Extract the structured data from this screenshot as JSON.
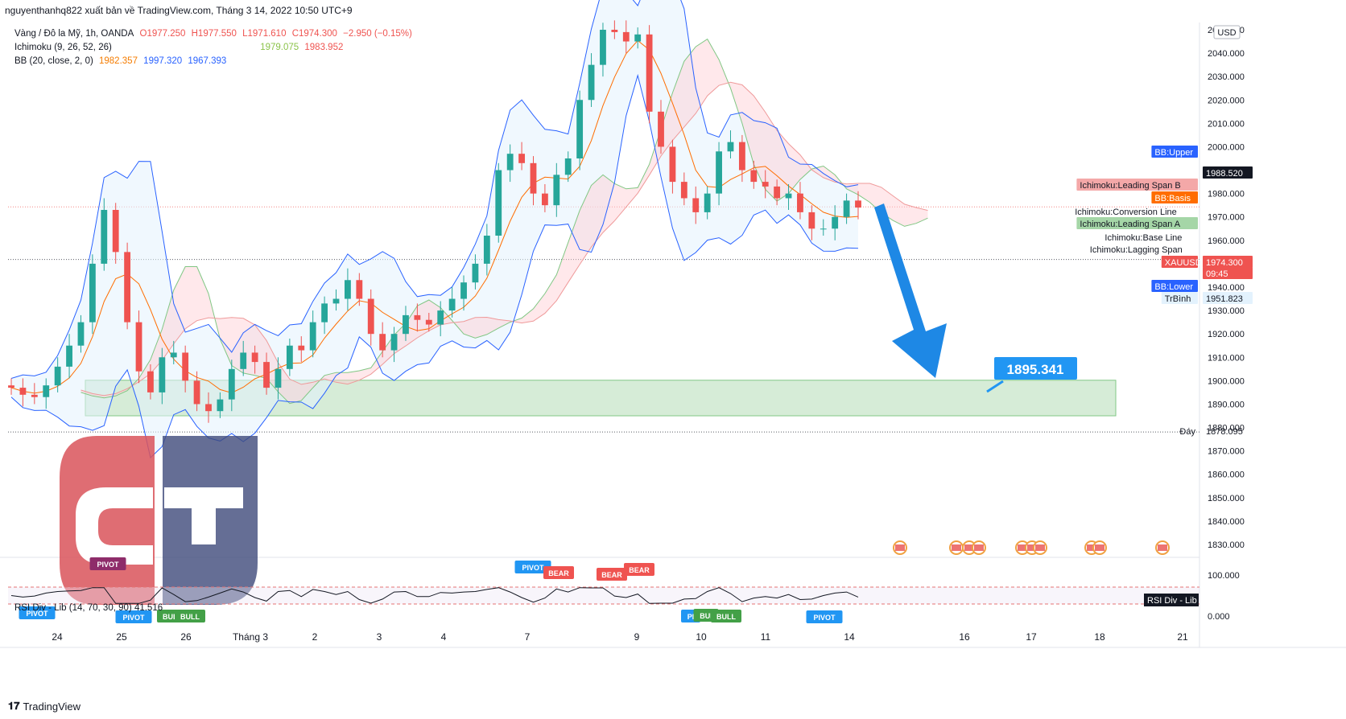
{
  "header": {
    "published_by": "nguyenthanhq822 xuất bản về TradingView.com, Tháng 3 14, 2022 10:50 UTC+9",
    "currency": "USD"
  },
  "legend": {
    "symbol": "Vàng / Đô la Mỹ, 1h, OANDA",
    "open": "O1977.250",
    "high": "H1977.550",
    "low": "L1971.610",
    "close": "C1974.300",
    "change": "−2.950 (−0.15%)",
    "ichimoku": "Ichimoku (9, 26, 52, 26)",
    "ichimoku_a": "1979.075",
    "ichimoku_b": "1983.952",
    "bb": "BB (20, close, 2, 0)",
    "bb_basis": "1982.357",
    "bb_upper": "1997.320",
    "bb_lower": "1967.393"
  },
  "price_axis": {
    "ticks": [
      "2050.000",
      "2040.000",
      "2030.000",
      "2020.000",
      "2010.000",
      "2000.000",
      "1990.000",
      "1980.000",
      "1970.000",
      "1960.000",
      "1950.000",
      "1940.000",
      "1930.000",
      "1920.000",
      "1910.000",
      "1900.000",
      "1890.000",
      "1880.000",
      "1870.000",
      "1860.000",
      "1850.000",
      "1840.000",
      "1830.000"
    ],
    "tick_values": [
      2050,
      2040,
      2030,
      2020,
      2010,
      2000,
      1990,
      1980,
      1970,
      1960,
      1950,
      1940,
      1930,
      1920,
      1910,
      1900,
      1890,
      1880,
      1870,
      1860,
      1850,
      1840,
      1830
    ],
    "labels": [
      {
        "name": "BB:Upper",
        "text": "BB:Upper",
        "value": 1997.32,
        "bg": "#2962ff",
        "fg": "#ffffff"
      },
      {
        "name": "price-1988",
        "text": "1988.520",
        "value": 1988.52,
        "bg": "#131722",
        "fg": "#ffffff"
      },
      {
        "name": "Ichimoku:Leading Span B",
        "text": "Ichimoku:Leading Span B",
        "value": 1983.95,
        "bg": "#f4a8a8",
        "fg": "#131722"
      },
      {
        "name": "BB:Basis",
        "text": "BB:Basis",
        "value": 1982.36,
        "bg": "#ff6d00",
        "fg": "#ffffff"
      },
      {
        "name": "Ichimoku:Conversion Line",
        "text": "Ichimoku:Conversion Line",
        "value": 1974.9,
        "bg": "#ffffff",
        "fg": "#131722"
      },
      {
        "name": "Ichimoku:Leading Span A",
        "text": "Ichimoku:Leading Span A",
        "value": 1979.08,
        "bg": "#a5d6a7",
        "fg": "#131722"
      },
      {
        "name": "Ichimoku:Base Line",
        "text": "Ichimoku:Base Line",
        "value": 1974.3,
        "bg": "#ffffff",
        "fg": "#131722"
      },
      {
        "name": "Ichimoku:Lagging Span",
        "text": "Ichimoku:Lagging Span",
        "value": 1974.3,
        "bg": "#ffffff",
        "fg": "#131722"
      },
      {
        "name": "XAUUSD",
        "text": "XAUUSD",
        "value": 1974.3,
        "bg": "#ef5350",
        "fg": "#ffffff"
      },
      {
        "name": "price-last",
        "text": "1974.300",
        "value": 1974.3,
        "bg": "#ef5350",
        "fg": "#ffffff"
      },
      {
        "name": "countdown",
        "text": "09:45",
        "value": 1974.3,
        "bg": "#ef5350",
        "fg": "#ffffff"
      },
      {
        "name": "BB:Lower",
        "text": "BB:Lower",
        "value": 1967.39,
        "bg": "#2962ff",
        "fg": "#ffffff"
      },
      {
        "name": "TrBinh",
        "text": "TrBình",
        "value": 1951.823,
        "bg": "#e3f2fd",
        "fg": "#131722"
      },
      {
        "name": "price-1951",
        "text": "1951.823",
        "value": 1951.823,
        "bg": "#e3f2fd",
        "fg": "#131722"
      },
      {
        "name": "Day",
        "text": "Đáy",
        "value": 1878.095,
        "bg": "#ffffff",
        "fg": "#131722"
      },
      {
        "name": "price-1878",
        "text": "1878.095",
        "value": 1878.095,
        "bg": "#ffffff",
        "fg": "#131722"
      }
    ]
  },
  "time_axis": {
    "labels": [
      "24",
      "25",
      "26",
      "Tháng 3",
      "2",
      "3",
      "4",
      "7",
      "9",
      "10",
      "11",
      "14",
      "16",
      "17",
      "18",
      "21"
    ]
  },
  "annotation": {
    "target_price": "1895.341",
    "zone_top": 1900.2,
    "zone_bottom": 1885.0,
    "trend": "down"
  },
  "rsi": {
    "legend": "RSI Div - Lib (14, 70, 30, 90)",
    "value": "41.516",
    "axis_ticks": [
      "100.000",
      "0.000"
    ],
    "label": "RSI Div - Lib",
    "markers": [
      {
        "text": "PIVOT",
        "color": "#2196f3"
      },
      {
        "text": "PIVOT",
        "color": "#8e2c6a"
      },
      {
        "text": "PIVOT",
        "color": "#2196f3"
      },
      {
        "text": "BULL",
        "color": "#43a047"
      },
      {
        "text": "BULL",
        "color": "#43a047"
      },
      {
        "text": "PIVOT",
        "color": "#2196f3"
      },
      {
        "text": "BEAR",
        "color": "#ef5350"
      },
      {
        "text": "BEAR",
        "color": "#ef5350"
      },
      {
        "text": "BEAR",
        "color": "#ef5350"
      },
      {
        "text": "PI",
        "color": "#2196f3"
      },
      {
        "text": "BUI",
        "color": "#43a047"
      },
      {
        "text": "BULL",
        "color": "#43a047"
      },
      {
        "text": "PIVOT",
        "color": "#2196f3"
      }
    ]
  },
  "footer": {
    "brand": "TradingView"
  },
  "chart_data": {
    "type": "candlestick",
    "symbol": "XAUUSD",
    "timeframe": "1h",
    "ylim": [
      1825,
      2052
    ],
    "close_series_approx": [
      1897,
      1894,
      1893,
      1898,
      1906,
      1915,
      1925,
      1950,
      1973,
      1955,
      1925,
      1904,
      1895,
      1910,
      1912,
      1900,
      1890,
      1887,
      1892,
      1905,
      1912,
      1908,
      1897,
      1905,
      1915,
      1913,
      1925,
      1933,
      1935,
      1943,
      1935,
      1920,
      1913,
      1920,
      1928,
      1926,
      1924,
      1930,
      1935,
      1942,
      1950,
      1962,
      1990,
      1997,
      1993,
      1980,
      1975,
      1988,
      1995,
      2020,
      2035,
      2050,
      2049,
      2045,
      2048,
      2015,
      2000,
      1985,
      1978,
      1972,
      1980,
      1998,
      2002,
      1990,
      1985,
      1983,
      1978,
      1980,
      1972,
      1965,
      1965,
      1970,
      1977,
      1974
    ],
    "colors": {
      "up": "#26a69a",
      "down": "#ef5350",
      "bb": "#2962ff",
      "basis": "#ff6d00",
      "span_a": "#a5d6a7",
      "span_b": "#ef9a9a",
      "zone": "#c8e6c9",
      "arrow": "#1e88e5"
    }
  }
}
